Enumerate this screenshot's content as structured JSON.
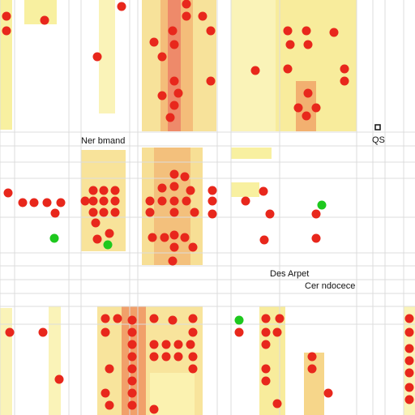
{
  "labels": {
    "place_1": "Ner bmand",
    "place_2": "Des Arpet",
    "place_3": "Cer ndocece",
    "corner": "QS"
  }
}
